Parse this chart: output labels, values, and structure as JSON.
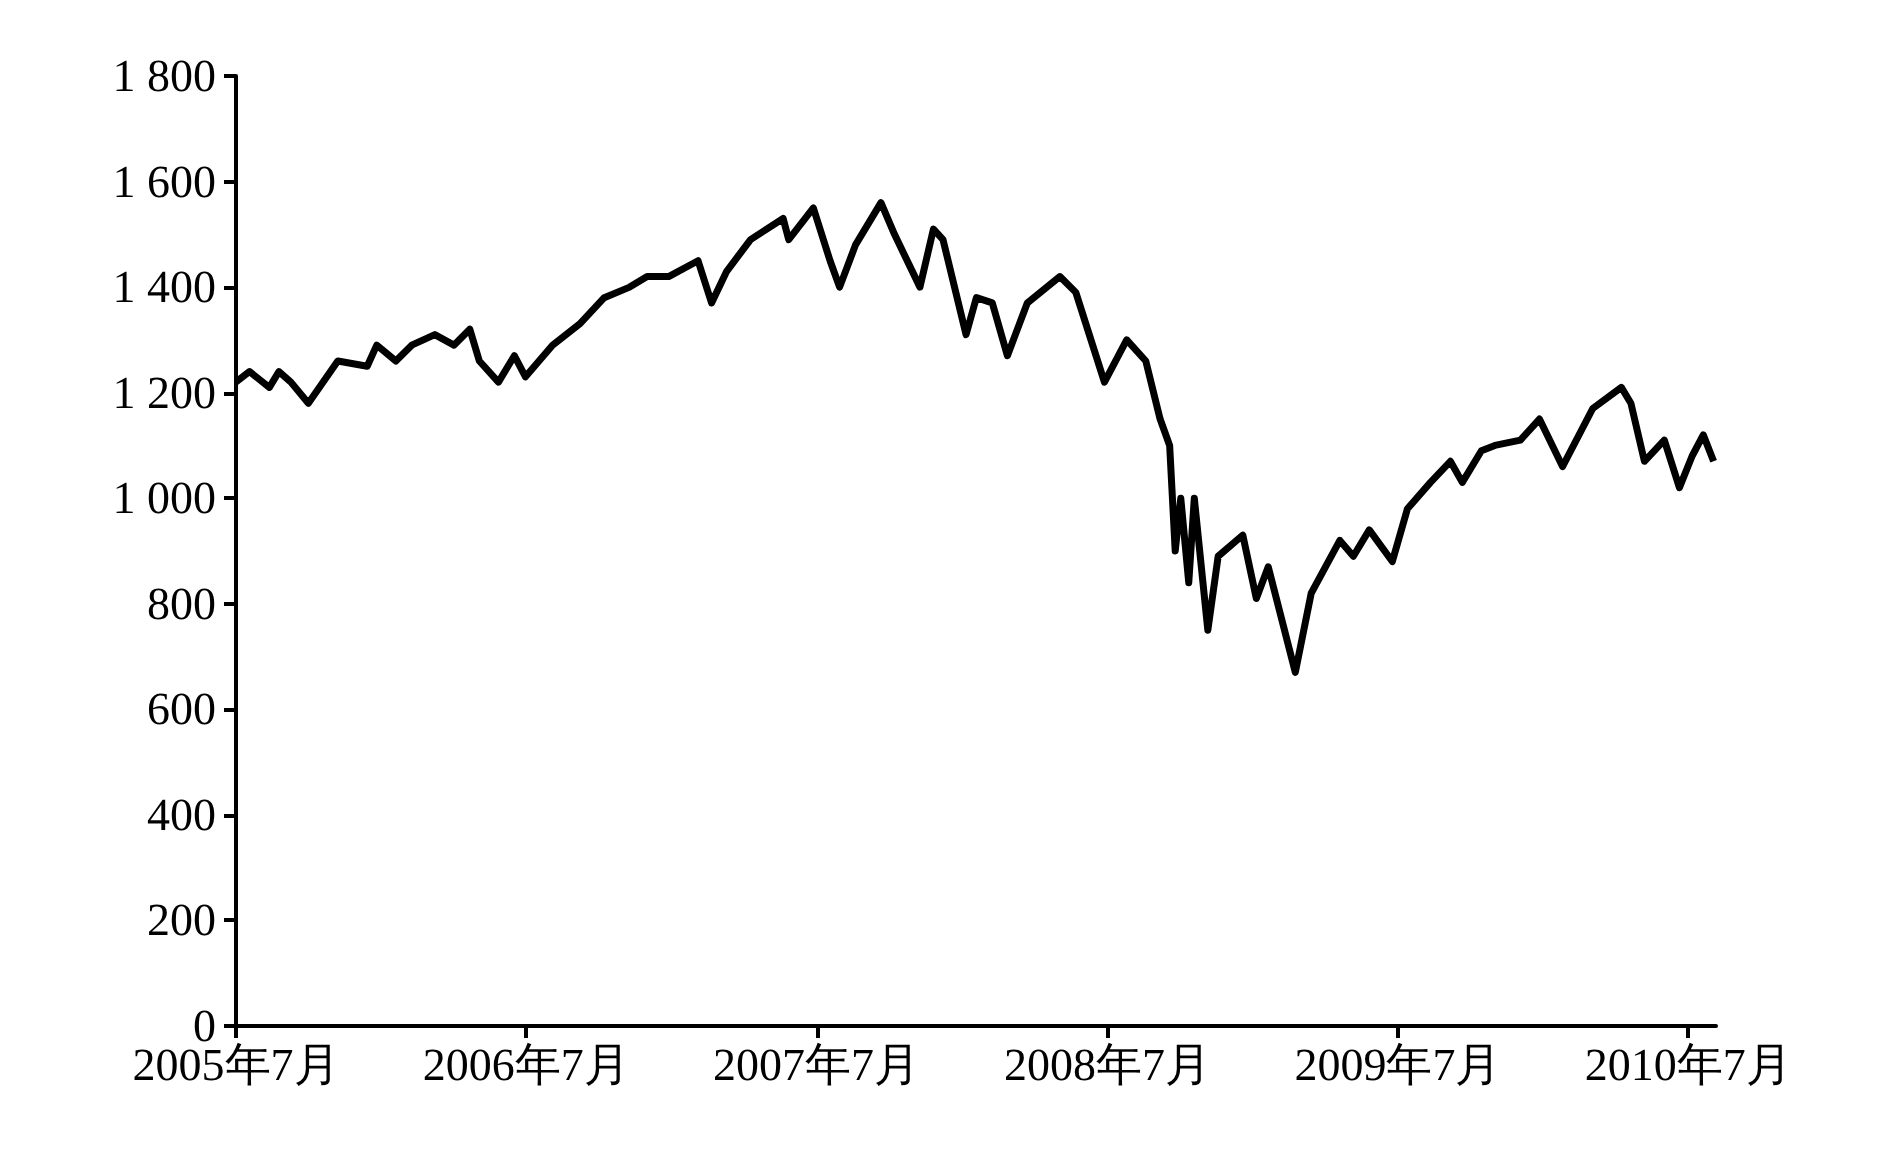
{
  "chart_data": {
    "type": "line",
    "x": [
      "2005-07-01",
      "2005-07-18",
      "2005-08-12",
      "2005-08-24",
      "2005-09-08",
      "2005-09-30",
      "2005-11-06",
      "2005-12-13",
      "2005-12-25",
      "2006-01-18",
      "2006-02-07",
      "2006-03-08",
      "2006-04-01",
      "2006-04-21",
      "2006-05-03",
      "2006-05-27",
      "2006-06-16",
      "2006-06-30",
      "2006-08-03",
      "2006-09-06",
      "2006-10-07",
      "2006-11-08",
      "2006-11-30",
      "2006-12-27",
      "2007-02-02",
      "2007-02-19",
      "2007-03-10",
      "2007-04-09",
      "2007-05-20",
      "2007-05-27",
      "2007-06-27",
      "2007-07-18",
      "2007-07-30",
      "2007-08-19",
      "2007-09-20",
      "2007-10-07",
      "2007-11-08",
      "2007-11-25",
      "2007-12-07",
      "2008-01-05",
      "2008-01-18",
      "2008-02-07",
      "2008-02-26",
      "2008-03-22",
      "2008-05-02",
      "2008-05-22",
      "2008-06-27",
      "2008-07-25",
      "2008-08-18",
      "2008-09-05",
      "2008-09-17",
      "2008-09-24",
      "2008-10-01",
      "2008-10-11",
      "2008-10-18",
      "2008-11-04",
      "2008-11-17",
      "2008-12-18",
      "2009-01-04",
      "2009-01-19",
      "2009-02-22",
      "2009-03-14",
      "2009-04-19",
      "2009-05-06",
      "2009-05-26",
      "2009-06-24",
      "2009-07-13",
      "2009-08-11",
      "2009-09-05",
      "2009-09-20",
      "2009-10-14",
      "2009-10-31",
      "2009-12-02",
      "2009-12-26",
      "2010-01-24",
      "2010-03-03",
      "2010-04-08",
      "2010-04-20",
      "2010-05-07",
      "2010-06-01",
      "2010-06-20",
      "2010-07-06",
      "2010-07-20",
      "2010-08-02"
    ],
    "series": [
      {
        "color": "#000000",
        "values": [
          1220,
          1240,
          1210,
          1240,
          1220,
          1180,
          1260,
          1250,
          1290,
          1260,
          1290,
          1310,
          1290,
          1320,
          1260,
          1220,
          1270,
          1230,
          1290,
          1330,
          1380,
          1400,
          1420,
          1420,
          1450,
          1370,
          1430,
          1490,
          1530,
          1490,
          1550,
          1450,
          1400,
          1480,
          1560,
          1500,
          1400,
          1510,
          1490,
          1310,
          1380,
          1370,
          1270,
          1370,
          1420,
          1390,
          1220,
          1300,
          1260,
          1150,
          1100,
          900,
          1000,
          840,
          1000,
          750,
          890,
          930,
          810,
          870,
          670,
          820,
          920,
          890,
          940,
          880,
          980,
          1030,
          1070,
          1030,
          1090,
          1100,
          1110,
          1150,
          1060,
          1170,
          1210,
          1180,
          1070,
          1110,
          1020,
          1080,
          1120,
          1070
        ]
      }
    ],
    "xlim": [
      "2005-07-01",
      "2010-08-05"
    ],
    "xticks": [
      {
        "value": "2005-07-01",
        "label": "2005年7月"
      },
      {
        "value": "2006-07-01",
        "label": "2006年7月"
      },
      {
        "value": "2007-07-01",
        "label": "2007年7月"
      },
      {
        "value": "2008-07-01",
        "label": "2008年7月"
      },
      {
        "value": "2009-07-01",
        "label": "2009年7月"
      },
      {
        "value": "2010-07-01",
        "label": "2010年7月"
      }
    ],
    "ylim": [
      0,
      1800
    ],
    "yticks": [
      0,
      200,
      400,
      600,
      800,
      {
        "value": 1000,
        "label": "1 000"
      },
      {
        "value": 1200,
        "label": "1 200"
      },
      {
        "value": 1400,
        "label": "1 400"
      },
      {
        "value": 1600,
        "label": "1 600"
      },
      {
        "value": 1800,
        "label": "1 800"
      }
    ],
    "grid": false,
    "marker": "none",
    "line_style": "solid"
  }
}
